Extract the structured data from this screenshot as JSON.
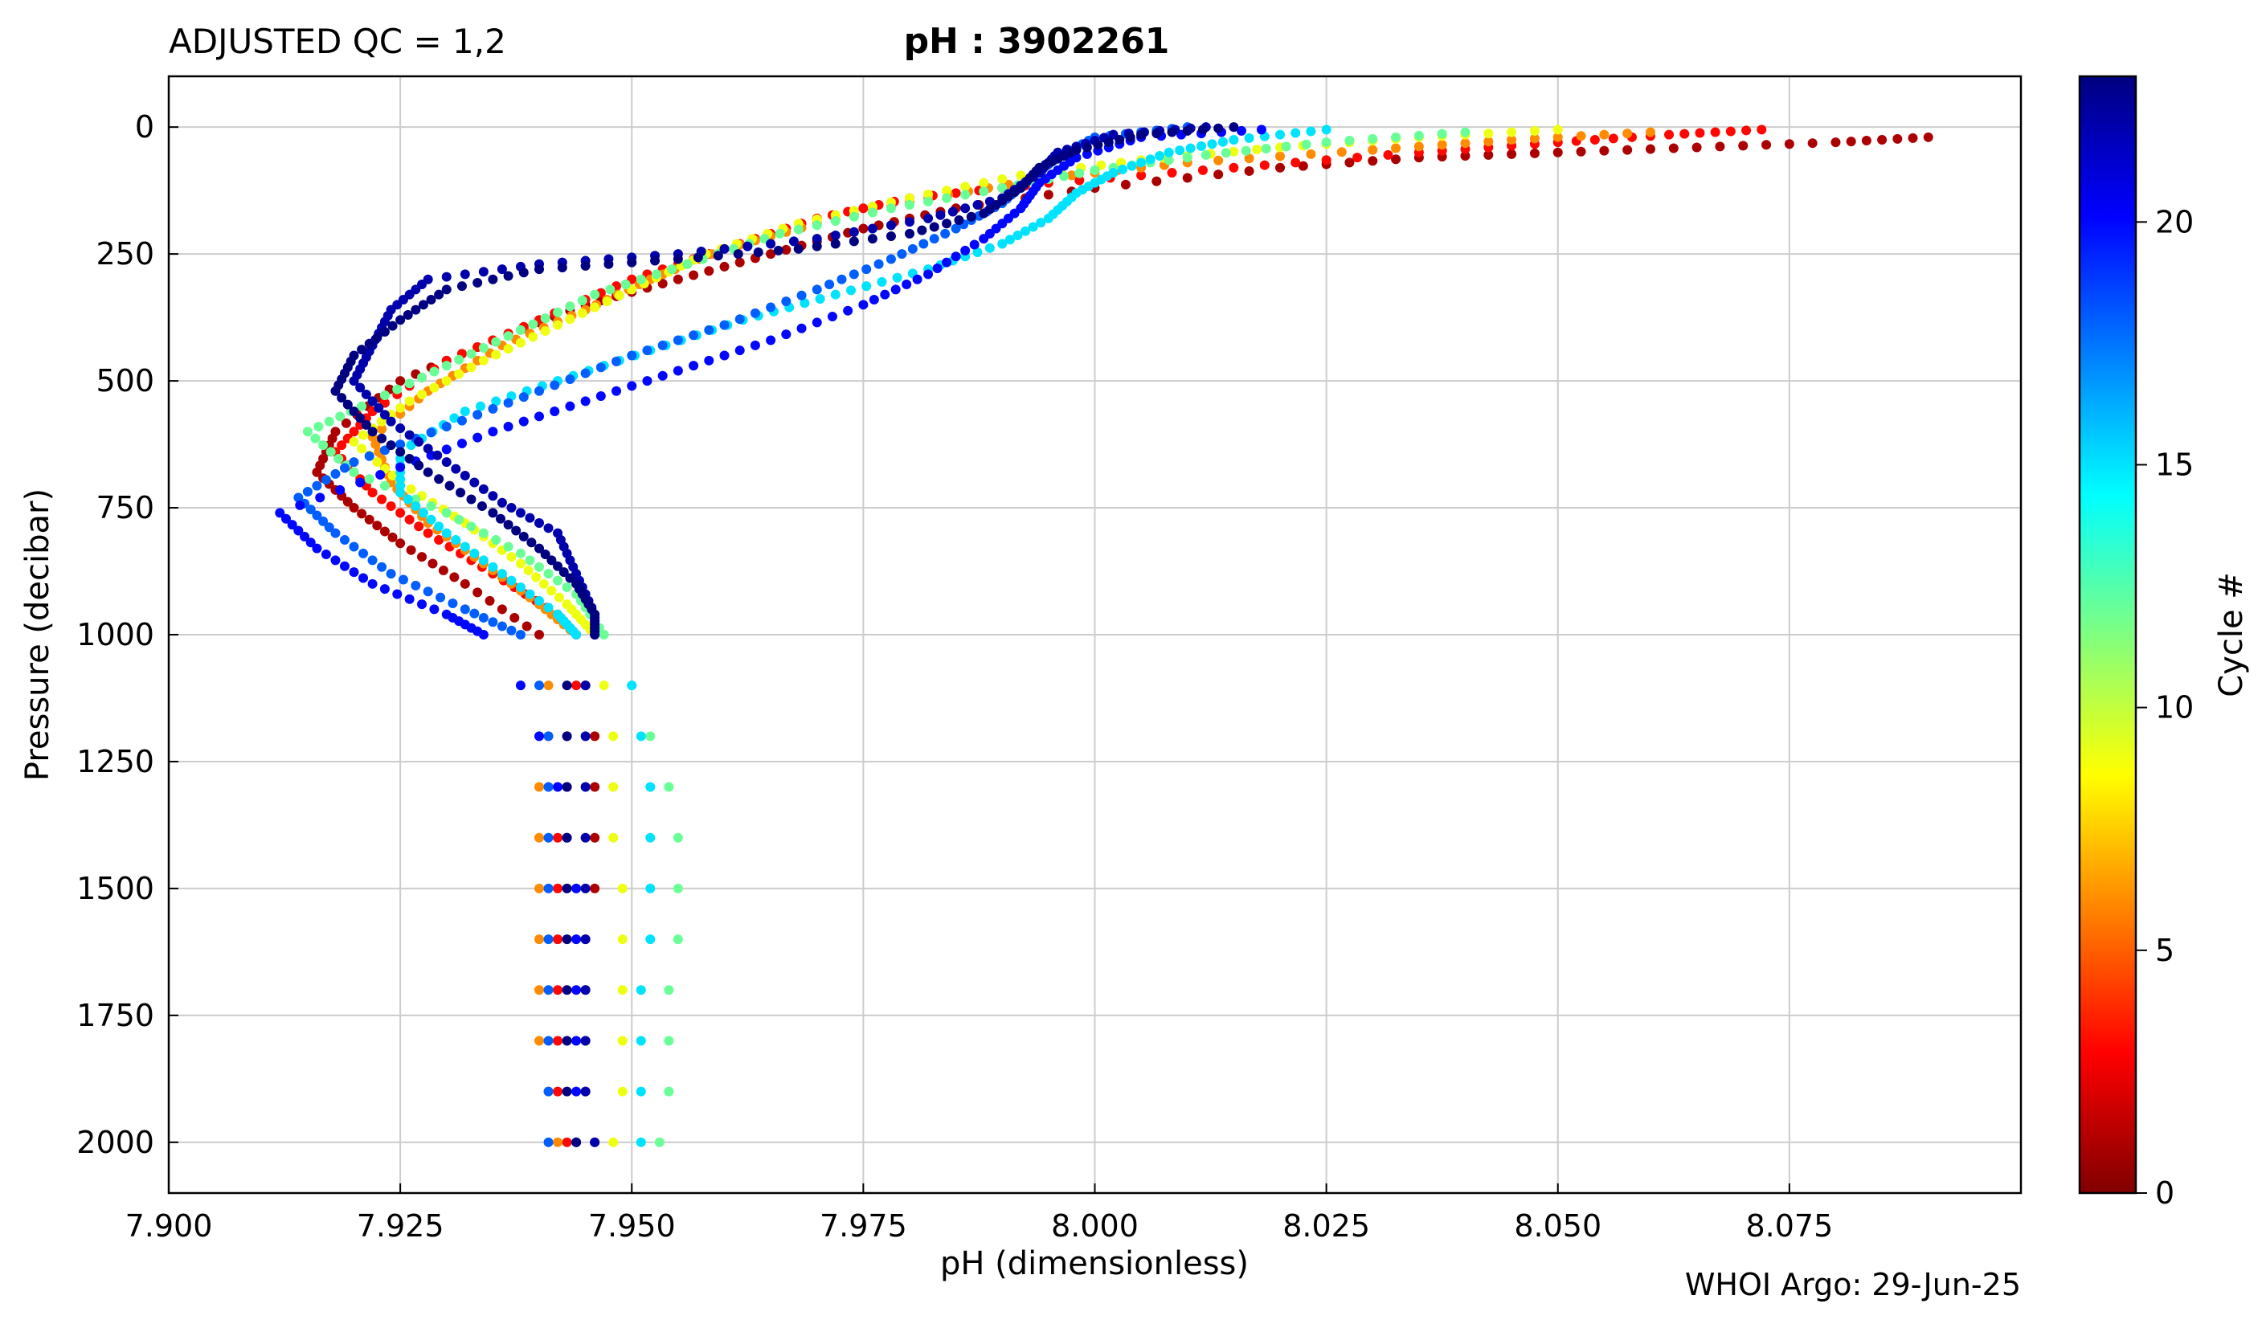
{
  "header": {
    "left_title": "ADJUSTED QC = 1,2",
    "center_title": "pH : 3902261"
  },
  "footer": {
    "credit": "WHOI Argo: 29-Jun-25"
  },
  "colorbar": {
    "label": "Cycle #",
    "range": [
      0,
      23
    ],
    "ticks": [
      0,
      5,
      10,
      15,
      20
    ],
    "colormap": "jet_reversed"
  },
  "chart_data": {
    "type": "scatter",
    "title": "pH : 3902261",
    "xlabel": "pH  (dimensionless)",
    "ylabel": "Pressure  (decibar)",
    "xlim": [
      7.9,
      8.1
    ],
    "ylim": [
      2100,
      -100
    ],
    "y_inverted": true,
    "grid": true,
    "xticks": [
      "7.900",
      "7.925",
      "7.950",
      "7.975",
      "8.000",
      "8.025",
      "8.050",
      "8.075"
    ],
    "yticks": [
      "0",
      "250",
      "500",
      "750",
      "1000",
      "1250",
      "1500",
      "1750",
      "2000"
    ],
    "color_by": "cycle",
    "series": [
      {
        "cycle": 1,
        "points": [
          [
            8.09,
            20
          ],
          [
            8.08,
            30
          ],
          [
            8.065,
            40
          ],
          [
            8.05,
            50
          ],
          [
            8.035,
            60
          ],
          [
            8.02,
            80
          ],
          [
            8.0,
            120
          ],
          [
            7.985,
            160
          ],
          [
            7.975,
            200
          ],
          [
            7.965,
            250
          ],
          [
            7.955,
            300
          ],
          [
            7.945,
            350
          ],
          [
            7.935,
            420
          ],
          [
            7.925,
            500
          ],
          [
            7.918,
            600
          ],
          [
            7.916,
            680
          ],
          [
            7.92,
            750
          ],
          [
            7.925,
            820
          ],
          [
            7.932,
            900
          ],
          [
            7.94,
            1000
          ],
          [
            7.945,
            1100
          ],
          [
            7.946,
            1200
          ],
          [
            7.946,
            1300
          ],
          [
            7.946,
            1400
          ],
          [
            7.946,
            1500
          ],
          [
            7.945,
            1600
          ],
          [
            7.945,
            1700
          ],
          [
            7.945,
            1800
          ],
          [
            7.945,
            1900
          ],
          [
            7.946,
            2000
          ]
        ]
      },
      {
        "cycle": 3,
        "points": [
          [
            8.072,
            5
          ],
          [
            8.062,
            15
          ],
          [
            8.05,
            30
          ],
          [
            8.035,
            50
          ],
          [
            8.015,
            80
          ],
          [
            7.995,
            110
          ],
          [
            7.98,
            140
          ],
          [
            7.97,
            180
          ],
          [
            7.96,
            240
          ],
          [
            7.95,
            300
          ],
          [
            7.94,
            380
          ],
          [
            7.93,
            460
          ],
          [
            7.922,
            560
          ],
          [
            7.918,
            640
          ],
          [
            7.922,
            720
          ],
          [
            7.928,
            800
          ],
          [
            7.935,
            880
          ],
          [
            7.942,
            960
          ],
          [
            7.944,
            1000
          ],
          [
            7.944,
            1100
          ],
          [
            7.943,
            1200
          ],
          [
            7.943,
            1300
          ],
          [
            7.942,
            1400
          ],
          [
            7.942,
            1500
          ],
          [
            7.942,
            1600
          ],
          [
            7.942,
            1700
          ],
          [
            7.942,
            1800
          ],
          [
            7.942,
            1900
          ],
          [
            7.943,
            2000
          ]
        ]
      },
      {
        "cycle": 6,
        "points": [
          [
            8.06,
            10
          ],
          [
            8.045,
            25
          ],
          [
            8.03,
            45
          ],
          [
            8.01,
            70
          ],
          [
            7.995,
            100
          ],
          [
            7.982,
            140
          ],
          [
            7.97,
            190
          ],
          [
            7.96,
            240
          ],
          [
            7.952,
            300
          ],
          [
            7.945,
            360
          ],
          [
            7.936,
            430
          ],
          [
            7.928,
            520
          ],
          [
            7.922,
            610
          ],
          [
            7.924,
            700
          ],
          [
            7.928,
            780
          ],
          [
            7.934,
            860
          ],
          [
            7.94,
            940
          ],
          [
            7.944,
            1000
          ],
          [
            7.941,
            1100
          ],
          [
            7.941,
            1200
          ],
          [
            7.94,
            1300
          ],
          [
            7.94,
            1400
          ],
          [
            7.94,
            1500
          ],
          [
            7.94,
            1600
          ],
          [
            7.94,
            1700
          ],
          [
            7.94,
            1800
          ],
          [
            7.941,
            1900
          ],
          [
            7.942,
            2000
          ]
        ]
      },
      {
        "cycle": 9,
        "points": [
          [
            8.05,
            5
          ],
          [
            8.035,
            20
          ],
          [
            8.02,
            40
          ],
          [
            8.005,
            65
          ],
          [
            7.992,
            95
          ],
          [
            7.98,
            140
          ],
          [
            7.968,
            190
          ],
          [
            7.958,
            250
          ],
          [
            7.95,
            320
          ],
          [
            7.942,
            390
          ],
          [
            7.934,
            460
          ],
          [
            7.926,
            540
          ],
          [
            7.92,
            620
          ],
          [
            7.925,
            700
          ],
          [
            7.932,
            780
          ],
          [
            7.938,
            860
          ],
          [
            7.943,
            940
          ],
          [
            7.946,
            1000
          ],
          [
            7.947,
            1100
          ],
          [
            7.948,
            1200
          ],
          [
            7.948,
            1300
          ],
          [
            7.948,
            1400
          ],
          [
            7.949,
            1500
          ],
          [
            7.949,
            1600
          ],
          [
            7.949,
            1700
          ],
          [
            7.949,
            1800
          ],
          [
            7.949,
            1900
          ],
          [
            7.948,
            2000
          ]
        ]
      },
      {
        "cycle": 12,
        "points": [
          [
            8.04,
            10
          ],
          [
            8.025,
            30
          ],
          [
            8.012,
            55
          ],
          [
            8.0,
            85
          ],
          [
            7.99,
            120
          ],
          [
            7.978,
            160
          ],
          [
            7.966,
            210
          ],
          [
            7.956,
            270
          ],
          [
            7.946,
            330
          ],
          [
            7.938,
            400
          ],
          [
            7.93,
            470
          ],
          [
            7.922,
            540
          ],
          [
            7.915,
            600
          ],
          [
            7.92,
            680
          ],
          [
            7.93,
            760
          ],
          [
            7.938,
            840
          ],
          [
            7.944,
            920
          ],
          [
            7.947,
            1000
          ],
          [
            7.95,
            1100
          ],
          [
            7.952,
            1200
          ],
          [
            7.954,
            1300
          ],
          [
            7.955,
            1400
          ],
          [
            7.955,
            1500
          ],
          [
            7.955,
            1600
          ],
          [
            7.954,
            1700
          ],
          [
            7.954,
            1800
          ],
          [
            7.954,
            1900
          ],
          [
            7.953,
            2000
          ]
        ]
      },
      {
        "cycle": 15,
        "points": [
          [
            8.025,
            5
          ],
          [
            8.015,
            25
          ],
          [
            8.008,
            50
          ],
          [
            8.002,
            90
          ],
          [
            7.998,
            130
          ],
          [
            7.995,
            180
          ],
          [
            7.99,
            230
          ],
          [
            7.982,
            280
          ],
          [
            7.972,
            330
          ],
          [
            7.962,
            380
          ],
          [
            7.952,
            440
          ],
          [
            7.942,
            500
          ],
          [
            7.932,
            560
          ],
          [
            7.925,
            640
          ],
          [
            7.925,
            720
          ],
          [
            7.93,
            800
          ],
          [
            7.936,
            880
          ],
          [
            7.942,
            960
          ],
          [
            7.944,
            1000
          ],
          [
            7.95,
            1100
          ],
          [
            7.951,
            1200
          ],
          [
            7.952,
            1300
          ],
          [
            7.952,
            1400
          ],
          [
            7.952,
            1500
          ],
          [
            7.952,
            1600
          ],
          [
            7.951,
            1700
          ],
          [
            7.951,
            1800
          ],
          [
            7.951,
            1900
          ],
          [
            7.951,
            2000
          ]
        ]
      },
      {
        "cycle": 18,
        "points": [
          [
            8.01,
            0
          ],
          [
            8.0,
            20
          ],
          [
            7.996,
            60
          ],
          [
            7.993,
            100
          ],
          [
            7.99,
            150
          ],
          [
            7.985,
            200
          ],
          [
            7.978,
            260
          ],
          [
            7.97,
            320
          ],
          [
            7.96,
            390
          ],
          [
            7.95,
            450
          ],
          [
            7.94,
            520
          ],
          [
            7.93,
            590
          ],
          [
            7.92,
            660
          ],
          [
            7.914,
            730
          ],
          [
            7.918,
            800
          ],
          [
            7.924,
            880
          ],
          [
            7.932,
            950
          ],
          [
            7.938,
            1000
          ],
          [
            7.94,
            1100
          ],
          [
            7.941,
            1200
          ],
          [
            7.941,
            1300
          ],
          [
            7.941,
            1400
          ],
          [
            7.941,
            1500
          ],
          [
            7.941,
            1600
          ],
          [
            7.941,
            1700
          ],
          [
            7.941,
            1800
          ],
          [
            7.941,
            1900
          ],
          [
            7.941,
            2000
          ]
        ]
      },
      {
        "cycle": 20,
        "points": [
          [
            8.018,
            5
          ],
          [
            8.005,
            20
          ],
          [
            7.998,
            60
          ],
          [
            7.994,
            110
          ],
          [
            7.992,
            160
          ],
          [
            7.988,
            220
          ],
          [
            7.982,
            290
          ],
          [
            7.975,
            350
          ],
          [
            7.965,
            420
          ],
          [
            7.955,
            480
          ],
          [
            7.945,
            540
          ],
          [
            7.935,
            600
          ],
          [
            7.925,
            670
          ],
          [
            7.912,
            760
          ],
          [
            7.916,
            830
          ],
          [
            7.922,
            900
          ],
          [
            7.93,
            960
          ],
          [
            7.934,
            1000
          ],
          [
            7.938,
            1100
          ],
          [
            7.94,
            1200
          ],
          [
            7.942,
            1300
          ],
          [
            7.943,
            1400
          ],
          [
            7.944,
            1500
          ],
          [
            7.944,
            1600
          ],
          [
            7.944,
            1700
          ],
          [
            7.944,
            1800
          ],
          [
            7.944,
            1900
          ],
          [
            7.944,
            2000
          ]
        ]
      },
      {
        "cycle": 22,
        "points": [
          [
            8.012,
            0
          ],
          [
            8.002,
            15
          ],
          [
            7.996,
            50
          ],
          [
            7.994,
            90
          ],
          [
            7.99,
            140
          ],
          [
            7.982,
            180
          ],
          [
            7.97,
            220
          ],
          [
            7.955,
            250
          ],
          [
            7.94,
            270
          ],
          [
            7.928,
            300
          ],
          [
            7.924,
            360
          ],
          [
            7.922,
            430
          ],
          [
            7.92,
            500
          ],
          [
            7.924,
            580
          ],
          [
            7.93,
            660
          ],
          [
            7.936,
            740
          ],
          [
            7.942,
            800
          ],
          [
            7.944,
            880
          ],
          [
            7.946,
            960
          ],
          [
            7.946,
            1000
          ],
          [
            7.945,
            1100
          ],
          [
            7.945,
            1200
          ],
          [
            7.945,
            1300
          ],
          [
            7.945,
            1400
          ],
          [
            7.945,
            1500
          ],
          [
            7.945,
            1600
          ],
          [
            7.945,
            1700
          ],
          [
            7.945,
            1800
          ],
          [
            7.945,
            1900
          ],
          [
            7.946,
            2000
          ]
        ]
      },
      {
        "cycle": 23,
        "points": [
          [
            8.015,
            0
          ],
          [
            8.005,
            15
          ],
          [
            7.998,
            45
          ],
          [
            7.994,
            80
          ],
          [
            7.992,
            120
          ],
          [
            7.988,
            170
          ],
          [
            7.98,
            210
          ],
          [
            7.968,
            240
          ],
          [
            7.955,
            260
          ],
          [
            7.94,
            280
          ],
          [
            7.93,
            320
          ],
          [
            7.925,
            380
          ],
          [
            7.92,
            450
          ],
          [
            7.918,
            520
          ],
          [
            7.922,
            600
          ],
          [
            7.928,
            680
          ],
          [
            7.935,
            760
          ],
          [
            7.94,
            830
          ],
          [
            7.944,
            900
          ],
          [
            7.946,
            960
          ],
          [
            7.946,
            1000
          ],
          [
            7.943,
            1100
          ],
          [
            7.943,
            1200
          ],
          [
            7.943,
            1300
          ],
          [
            7.943,
            1400
          ],
          [
            7.943,
            1500
          ],
          [
            7.943,
            1600
          ],
          [
            7.943,
            1700
          ],
          [
            7.943,
            1800
          ],
          [
            7.943,
            1900
          ],
          [
            7.944,
            2000
          ]
        ]
      }
    ]
  }
}
